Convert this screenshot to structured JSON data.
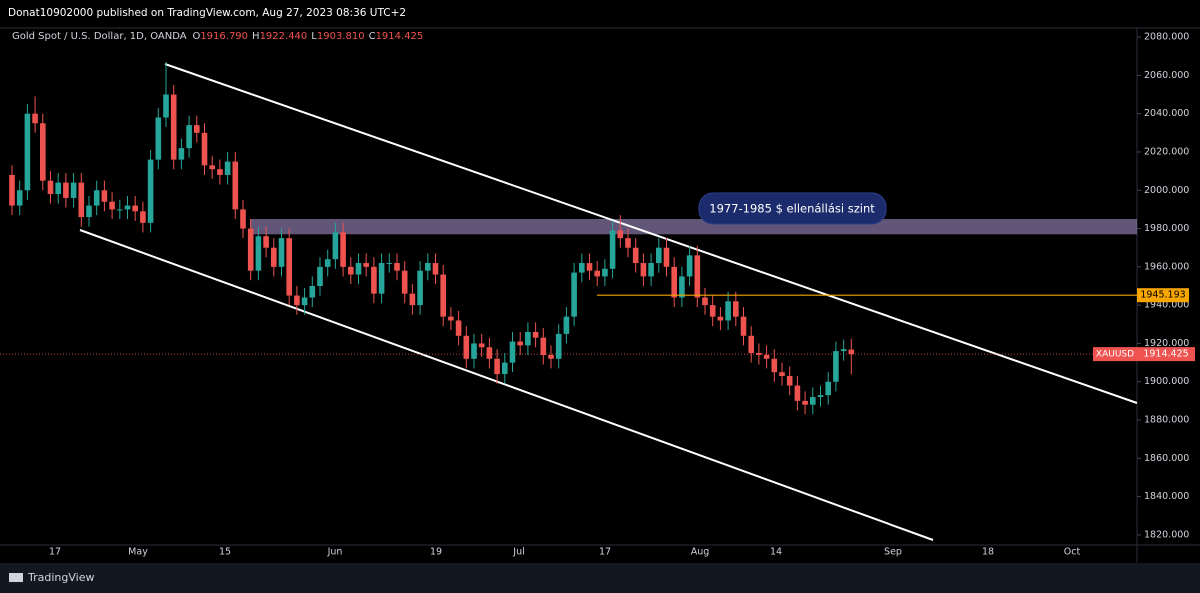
{
  "header": {
    "text": "Donat10902000 published on TradingView.com, Aug 27, 2023 08:36 UTC+2"
  },
  "chart_data": {
    "type": "candlestick",
    "title": "Gold Spot / U.S. Dollar, 1D, OANDA",
    "ohlc_legend": [
      {
        "key": "O",
        "text": "1916.790"
      },
      {
        "key": "H",
        "text": "1922.440"
      },
      {
        "key": "L",
        "text": "1903.810"
      },
      {
        "key": "C",
        "text": "1914.425"
      }
    ],
    "open": [
      2008,
      1992,
      2000,
      2040,
      2035,
      2005,
      1998,
      2004,
      1996,
      2004,
      1986,
      1992,
      2000,
      1994,
      1990,
      1990,
      1992,
      1989,
      1983,
      2016,
      2038,
      2050,
      2016,
      2022,
      2034,
      2030,
      2013,
      2011,
      2008,
      2015,
      1990,
      1980,
      1958,
      1976,
      1970,
      1960,
      1975,
      1945,
      1940,
      1944,
      1950,
      1960,
      1964,
      1978,
      1960,
      1956,
      1962,
      1960,
      1946,
      1962,
      1962,
      1958,
      1946,
      1940,
      1958,
      1962,
      1956,
      1934,
      1932,
      1924,
      1912,
      1920,
      1918,
      1912,
      1904,
      1910,
      1921,
      1919,
      1926,
      1923,
      1914,
      1912,
      1925,
      1934,
      1957,
      1962,
      1958,
      1955,
      1959,
      1979,
      1975,
      1970,
      1962,
      1955,
      1962,
      1970,
      1960,
      1944,
      1955,
      1966,
      1944,
      1940,
      1934,
      1932,
      1942,
      1934,
      1924,
      1915,
      1914,
      1912,
      1905,
      1903,
      1898,
      1890,
      1888,
      1892,
      1893,
      1900,
      1916,
      1916.79
    ],
    "high": [
      2013,
      2005,
      2045,
      2049,
      2040,
      2010,
      2009,
      2009,
      2009,
      2009,
      1997,
      2005,
      2005,
      1999,
      1995,
      1997,
      1997,
      1994,
      2021,
      2043,
      2067,
      2055,
      2027,
      2039,
      2039,
      2035,
      2018,
      2016,
      2020,
      2020,
      1995,
      1985,
      1981,
      1981,
      1975,
      1980,
      1980,
      1950,
      1949,
      1955,
      1965,
      1969,
      1983,
      1983,
      1965,
      1967,
      1967,
      1965,
      1967,
      1967,
      1967,
      1963,
      1951,
      1963,
      1967,
      1967,
      1961,
      1939,
      1937,
      1929,
      1925,
      1925,
      1923,
      1917,
      1915,
      1926,
      1926,
      1931,
      1931,
      1928,
      1919,
      1930,
      1939,
      1962,
      1967,
      1967,
      1963,
      1964,
      1984,
      1987,
      1980,
      1975,
      1967,
      1967,
      1975,
      1975,
      1965,
      1960,
      1971,
      1971,
      1949,
      1945,
      1939,
      1947,
      1947,
      1939,
      1929,
      1920,
      1919,
      1917,
      1910,
      1908,
      1903,
      1895,
      1897,
      1898,
      1905,
      1921,
      1922,
      1922.44
    ],
    "low": [
      1987,
      1987,
      1995,
      2030,
      2000,
      1993,
      1993,
      1991,
      1991,
      1981,
      1981,
      1987,
      1989,
      1985,
      1985,
      1985,
      1984,
      1978,
      1978,
      2011,
      2033,
      2011,
      2011,
      2017,
      2025,
      2008,
      2006,
      2003,
      2003,
      1985,
      1975,
      1953,
      1953,
      1965,
      1955,
      1955,
      1940,
      1935,
      1935,
      1939,
      1945,
      1955,
      1959,
      1955,
      1951,
      1951,
      1955,
      1941,
      1941,
      1957,
      1953,
      1941,
      1935,
      1935,
      1953,
      1951,
      1929,
      1927,
      1919,
      1907,
      1907,
      1913,
      1907,
      1899,
      1899,
      1905,
      1914,
      1914,
      1918,
      1909,
      1907,
      1907,
      1920,
      1929,
      1952,
      1953,
      1950,
      1950,
      1954,
      1970,
      1965,
      1957,
      1950,
      1950,
      1957,
      1955,
      1939,
      1939,
      1950,
      1939,
      1935,
      1929,
      1927,
      1927,
      1929,
      1919,
      1910,
      1909,
      1907,
      1900,
      1898,
      1893,
      1885,
      1883,
      1883,
      1887,
      1888,
      1895,
      1911,
      1903.81
    ],
    "close": [
      1992,
      2000,
      2040,
      2035,
      2005,
      1998,
      2004,
      1996,
      2004,
      1986,
      1992,
      2000,
      1994,
      1990,
      1990,
      1992,
      1989,
      1983,
      2016,
      2038,
      2050,
      2016,
      2022,
      2034,
      2030,
      2013,
      2011,
      2008,
      2015,
      1990,
      1980,
      1958,
      1976,
      1970,
      1960,
      1975,
      1945,
      1940,
      1944,
      1950,
      1960,
      1964,
      1978,
      1960,
      1956,
      1962,
      1960,
      1946,
      1962,
      1962,
      1958,
      1946,
      1940,
      1958,
      1962,
      1956,
      1934,
      1932,
      1924,
      1912,
      1920,
      1918,
      1912,
      1904,
      1910,
      1921,
      1919,
      1926,
      1923,
      1914,
      1912,
      1925,
      1934,
      1957,
      1962,
      1958,
      1955,
      1959,
      1979,
      1975,
      1970,
      1962,
      1955,
      1962,
      1970,
      1960,
      1944,
      1955,
      1966,
      1944,
      1940,
      1934,
      1932,
      1942,
      1934,
      1924,
      1915,
      1914,
      1912,
      1905,
      1903,
      1898,
      1890,
      1888,
      1892,
      1893,
      1900,
      1916,
      1917,
      1914.425
    ],
    "up_color": "#26a69a",
    "down_color": "#ef5350",
    "ylim": [
      1815,
      2085
    ],
    "yticks": [
      {
        "value": 2080,
        "label": "2080.000"
      },
      {
        "value": 2060,
        "label": "2060.000"
      },
      {
        "value": 2040,
        "label": "2040.000"
      },
      {
        "value": 2020,
        "label": "2020.000"
      },
      {
        "value": 2000,
        "label": "2000.000"
      },
      {
        "value": 1980,
        "label": "1980.000"
      },
      {
        "value": 1960,
        "label": "1960.000"
      },
      {
        "value": 1940,
        "label": "1940.000"
      },
      {
        "value": 1920,
        "label": "1920.000"
      },
      {
        "value": 1900,
        "label": "1900.000"
      },
      {
        "value": 1880,
        "label": "1880.000"
      },
      {
        "value": 1860,
        "label": "1860.000"
      },
      {
        "value": 1840,
        "label": "1840.000"
      },
      {
        "value": 1820,
        "label": "1820.000"
      }
    ],
    "xtick_labels": [
      "17",
      "May",
      "15",
      "Jun",
      "19",
      "Jul",
      "17",
      "Aug",
      "14",
      "Sep",
      "18",
      "Oct"
    ],
    "resistance_zone": {
      "low": 1977,
      "high": 1985,
      "label": "1977-1985 $ ellenállási szint"
    },
    "level_line": {
      "value": 1945.193,
      "label": "1945.193",
      "color": "#f7a600"
    },
    "last_price": {
      "symbol": "XAUUSD",
      "value": 1914.425,
      "label": "1914.425",
      "color": "#ef5350"
    }
  },
  "footer": {
    "brand": "TradingView"
  }
}
